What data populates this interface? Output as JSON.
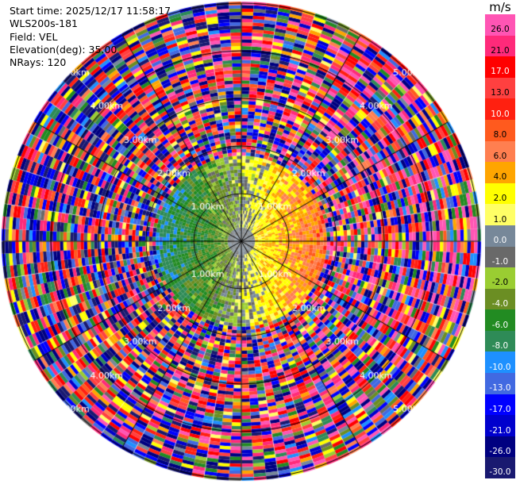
{
  "header": {
    "start_time": "Start time: 2025/12/17 11:58:17",
    "station": "WLS200s-181",
    "field": "Field: VEL",
    "elevation": "Elevation(deg): 35.00",
    "nrays": "NRays: 120"
  },
  "colorbar": {
    "unit": "m/s",
    "ticks": [
      "26.0",
      "21.0",
      "17.0",
      "13.0",
      "10.0",
      "8.0",
      "6.0",
      "4.0",
      "2.0",
      "1.0",
      "0.0",
      "-1.0",
      "-2.0",
      "-4.0",
      "-6.0",
      "-8.0",
      "-10.0",
      "-13.0",
      "-17.0",
      "-21.0",
      "-26.0",
      "-30.0"
    ],
    "colors": [
      "#ff55b4",
      "#ff2a7a",
      "#ff0000",
      "#ff4040",
      "#ff2010",
      "#ff5a1e",
      "#ff7f50",
      "#ffa500",
      "#ffff00",
      "#ffff66",
      "#778899",
      "#696969",
      "#9acd32",
      "#6b8e23",
      "#228b22",
      "#2e8b57",
      "#1e90ff",
      "#4169e1",
      "#0000ff",
      "#0000cd",
      "#000080",
      "#191970"
    ]
  },
  "chart_data": {
    "type": "heatmap",
    "subtype": "radar-ppi",
    "field": "VEL",
    "unit": "m/s",
    "elevation_deg": 35.0,
    "nrays": 120,
    "max_range_km": 5.0,
    "range_rings": [
      {
        "label": "1.00km",
        "range_km": 1.0
      },
      {
        "label": "2.00km",
        "range_km": 2.0
      },
      {
        "label": "3.00km",
        "range_km": 3.0
      },
      {
        "label": "4.00km",
        "range_km": 4.0
      },
      {
        "label": "5.00km",
        "range_km": 5.0
      }
    ],
    "pattern": "positive (orange/red) velocities toward the east, negative (blue/green) toward the west, noisy speckle at far ranges"
  }
}
